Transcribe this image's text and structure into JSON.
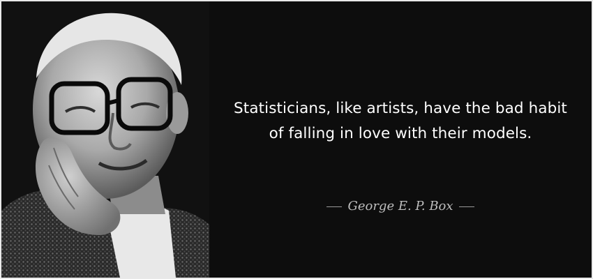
{
  "quote": {
    "text": "Statisticians, like artists, have the bad habit of falling in love with their models.",
    "author": "George E. P. Box"
  },
  "colors": {
    "background": "#0d0d0d",
    "text": "#ffffff",
    "author": "#bdbdbd"
  }
}
